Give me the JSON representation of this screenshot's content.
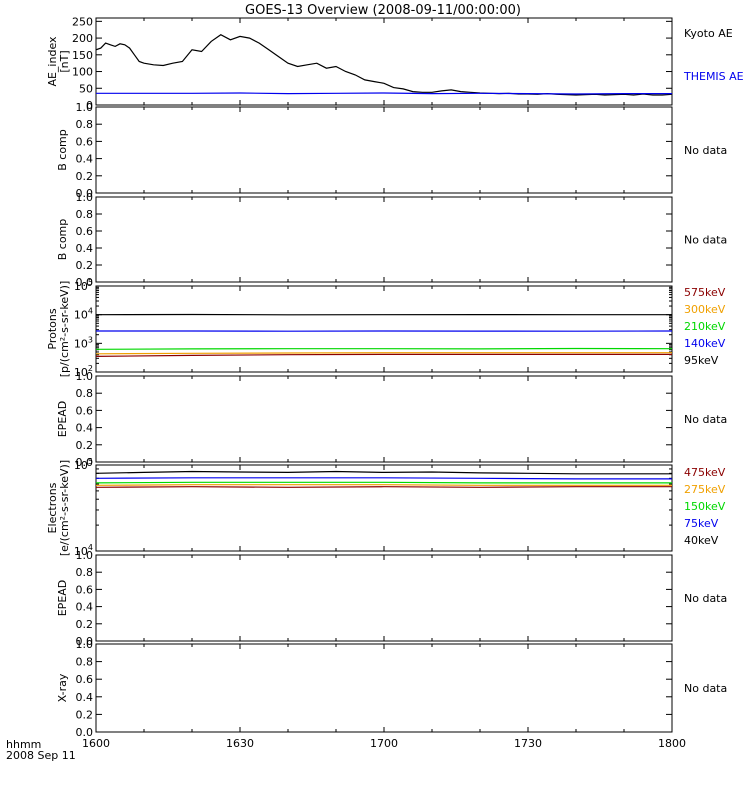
{
  "title": "GOES-13 Overview (2008-09-11/00:00:00)",
  "colors": {
    "black": "#000000",
    "blue": "#0000ee",
    "green": "#00d800",
    "orange": "#f0a000",
    "darkred": "#8b0000"
  },
  "chart_data": {
    "type": "line",
    "xaxis": {
      "ticks": [
        "1600",
        "1630",
        "1700",
        "1730",
        "1800"
      ],
      "units_label": "hhmm",
      "date_label": "2008 Sep 11"
    },
    "panels": [
      {
        "id": "ae",
        "ylabel": [
          "AE_index",
          "[nT]"
        ],
        "log": false,
        "ylim": [
          0,
          260
        ],
        "ticks": [
          {
            "v": 0,
            "t": "0"
          },
          {
            "v": 50,
            "t": "50"
          },
          {
            "v": 100,
            "t": "100"
          },
          {
            "v": 150,
            "t": "150"
          },
          {
            "v": 200,
            "t": "200"
          },
          {
            "v": 250,
            "t": "250"
          }
        ],
        "series": [
          {
            "name": "Kyoto AE",
            "color": "black",
            "x": [
              0,
              1,
              2,
              3,
              4,
              5,
              6,
              7,
              8,
              9,
              10,
              12,
              14,
              16,
              18,
              20,
              22,
              24,
              26,
              28,
              30,
              32,
              34,
              36,
              38,
              40,
              42,
              44,
              46,
              48,
              50,
              52,
              54,
              56,
              58,
              60,
              62,
              64,
              66,
              68,
              70,
              72,
              74,
              76,
              78,
              80,
              82,
              84,
              86,
              88,
              90,
              92,
              94,
              96,
              98,
              100,
              102,
              104,
              106,
              108,
              110,
              112,
              114,
              116,
              118,
              120
            ],
            "y": [
              165,
              170,
              185,
              180,
              175,
              183,
              180,
              170,
              150,
              130,
              125,
              120,
              118,
              125,
              130,
              165,
              160,
              190,
              210,
              195,
              205,
              200,
              185,
              165,
              145,
              125,
              115,
              120,
              125,
              110,
              115,
              100,
              90,
              75,
              70,
              65,
              52,
              48,
              40,
              38,
              38,
              42,
              45,
              40,
              38,
              36,
              35,
              34,
              35,
              33,
              33,
              32,
              34,
              32,
              31,
              30,
              31,
              32,
              30,
              31,
              32,
              30,
              33,
              30,
              30,
              32
            ]
          },
          {
            "name": "THEMIS AE",
            "color": "blue",
            "x": [
              0,
              10,
              20,
              30,
              40,
              50,
              60,
              70,
              80,
              90,
              100,
              110,
              120
            ],
            "y": [
              35,
              35,
              35,
              36,
              34,
              35,
              36,
              34,
              35,
              34,
              33,
              34,
              34
            ]
          }
        ]
      },
      {
        "id": "bcomp1",
        "ylabel": [
          "B comp"
        ],
        "log": false,
        "ylim": [
          0,
          1
        ],
        "ticks": [
          {
            "v": 0,
            "t": "0.0"
          },
          {
            "v": 0.2,
            "t": "0.2"
          },
          {
            "v": 0.4,
            "t": "0.4"
          },
          {
            "v": 0.6,
            "t": "0.6"
          },
          {
            "v": 0.8,
            "t": "0.8"
          },
          {
            "v": 1,
            "t": "1.0"
          }
        ],
        "nodata": "No data"
      },
      {
        "id": "bcomp2",
        "ylabel": [
          "B comp"
        ],
        "log": false,
        "ylim": [
          0,
          1
        ],
        "ticks": [
          {
            "v": 0,
            "t": "0.0"
          },
          {
            "v": 0.2,
            "t": "0.2"
          },
          {
            "v": 0.4,
            "t": "0.4"
          },
          {
            "v": 0.6,
            "t": "0.6"
          },
          {
            "v": 0.8,
            "t": "0.8"
          },
          {
            "v": 1,
            "t": "1.0"
          }
        ],
        "nodata": "No data"
      },
      {
        "id": "protons",
        "ylabel": [
          "Protons",
          "[p/(cm²-s-sr-keV)]"
        ],
        "log": true,
        "ylim": [
          100,
          100000
        ],
        "ticks": [
          {
            "v": 100,
            "base": "10",
            "exp": "2"
          },
          {
            "v": 1000,
            "base": "10",
            "exp": "3"
          },
          {
            "v": 10000,
            "base": "10",
            "exp": "4"
          },
          {
            "v": 100000,
            "base": "10",
            "exp": "5"
          }
        ],
        "series": [
          {
            "name": "95keV",
            "color": "black",
            "x": [
              0,
              20,
              40,
              60,
              80,
              100,
              120
            ],
            "y": [
              10000,
              10100,
              9900,
              10000,
              10050,
              9950,
              10000
            ]
          },
          {
            "name": "140keV",
            "color": "blue",
            "x": [
              0,
              20,
              40,
              60,
              80,
              100,
              120
            ],
            "y": [
              2700,
              2700,
              2650,
              2700,
              2680,
              2650,
              2700
            ]
          },
          {
            "name": "210keV",
            "color": "green",
            "x": [
              0,
              20,
              40,
              60,
              80,
              100,
              120
            ],
            "y": [
              620,
              640,
              650,
              650,
              640,
              660,
              650
            ]
          },
          {
            "name": "300keV",
            "color": "orange",
            "x": [
              0,
              20,
              40,
              60,
              80,
              100,
              120
            ],
            "y": [
              430,
              450,
              460,
              470,
              470,
              470,
              470
            ]
          },
          {
            "name": "575keV",
            "color": "darkred",
            "x": [
              0,
              20,
              40,
              60,
              80,
              100,
              120
            ],
            "y": [
              350,
              380,
              400,
              410,
              410,
              410,
              410
            ]
          }
        ]
      },
      {
        "id": "epead1",
        "ylabel": [
          "EPEAD"
        ],
        "log": false,
        "ylim": [
          0,
          1
        ],
        "ticks": [
          {
            "v": 0,
            "t": "0.0"
          },
          {
            "v": 0.2,
            "t": "0.2"
          },
          {
            "v": 0.4,
            "t": "0.4"
          },
          {
            "v": 0.6,
            "t": "0.6"
          },
          {
            "v": 0.8,
            "t": "0.8"
          },
          {
            "v": 1,
            "t": "1.0"
          }
        ],
        "nodata": "No data"
      },
      {
        "id": "electrons",
        "ylabel": [
          "Electrons",
          "[e/(cm²-s-sr-keV)]"
        ],
        "log": true,
        "ylim": [
          10000,
          100000
        ],
        "ticks": [
          {
            "v": 10000,
            "base": "10",
            "exp": "4"
          },
          {
            "v": 100000,
            "base": "10",
            "exp": "5"
          }
        ],
        "series": [
          {
            "name": "40keV",
            "color": "black",
            "x": [
              0,
              10,
              20,
              30,
              40,
              50,
              60,
              70,
              80,
              90,
              100,
              110,
              120
            ],
            "y": [
              80000,
              82000,
              84000,
              83000,
              82000,
              84000,
              82000,
              83000,
              81000,
              80000,
              79000,
              79000,
              79000
            ]
          },
          {
            "name": "75keV",
            "color": "blue",
            "x": [
              0,
              20,
              40,
              60,
              80,
              100,
              120
            ],
            "y": [
              70000,
              71000,
              71000,
              71000,
              70000,
              69000,
              69000
            ]
          },
          {
            "name": "150keV",
            "color": "green",
            "x": [
              0,
              20,
              40,
              60,
              80,
              100,
              120
            ],
            "y": [
              62000,
              63000,
              63000,
              63000,
              62000,
              62000,
              62000
            ]
          },
          {
            "name": "275keV",
            "color": "orange",
            "x": [
              0,
              20,
              40,
              60,
              80,
              100,
              120
            ],
            "y": [
              58000,
              59000,
              59000,
              59000,
              58000,
              58000,
              58000
            ]
          },
          {
            "name": "475keV",
            "color": "darkred",
            "x": [
              0,
              20,
              40,
              60,
              80,
              100,
              120
            ],
            "y": [
              55000,
              56000,
              55000,
              56000,
              55000,
              56000,
              56000
            ]
          }
        ]
      },
      {
        "id": "epead2",
        "ylabel": [
          "EPEAD"
        ],
        "log": false,
        "ylim": [
          0,
          1
        ],
        "ticks": [
          {
            "v": 0,
            "t": "0.0"
          },
          {
            "v": 0.2,
            "t": "0.2"
          },
          {
            "v": 0.4,
            "t": "0.4"
          },
          {
            "v": 0.6,
            "t": "0.6"
          },
          {
            "v": 0.8,
            "t": "0.8"
          },
          {
            "v": 1,
            "t": "1.0"
          }
        ],
        "nodata": "No data"
      },
      {
        "id": "xray",
        "ylabel": [
          "X-ray"
        ],
        "log": false,
        "ylim": [
          0,
          1
        ],
        "ticks": [
          {
            "v": 0,
            "t": "0.0"
          },
          {
            "v": 0.2,
            "t": "0.2"
          },
          {
            "v": 0.4,
            "t": "0.4"
          },
          {
            "v": 0.6,
            "t": "0.6"
          },
          {
            "v": 0.8,
            "t": "0.8"
          },
          {
            "v": 1,
            "t": "1.0"
          }
        ],
        "nodata": "No data"
      }
    ]
  }
}
